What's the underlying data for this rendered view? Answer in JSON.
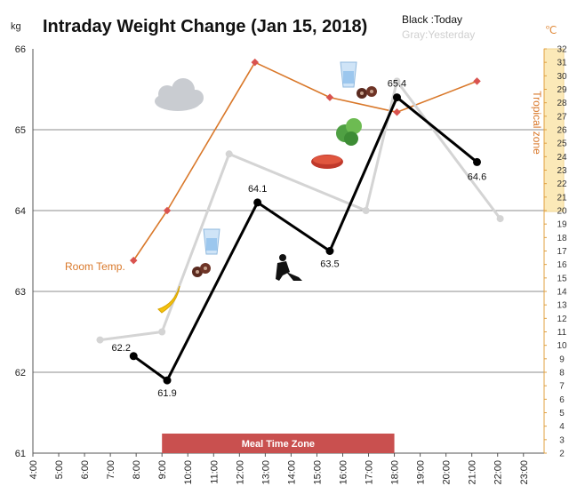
{
  "chart_data": {
    "type": "line",
    "title": "Intraday Weight Change (Jan 15, 2018)",
    "legend": {
      "today": "Black :Today",
      "yesterday": "Gray:Yesterday"
    },
    "y_unit": "kg",
    "y2_unit": "℃",
    "ylim": [
      61,
      66
    ],
    "y_ticks": [
      "61",
      "62",
      "63",
      "64",
      "65",
      "66"
    ],
    "y2lim": [
      2,
      32
    ],
    "y2_ticks": [
      "2",
      "3",
      "4",
      "5",
      "6",
      "7",
      "8",
      "9",
      "10",
      "11",
      "12",
      "13",
      "14",
      "15",
      "16",
      "17",
      "18",
      "19",
      "20",
      "21",
      "22",
      "23",
      "24",
      "25",
      "26",
      "27",
      "28",
      "29",
      "30",
      "31",
      "32"
    ],
    "x_ticks": [
      "4:00",
      "5:00",
      "6:00",
      "7:00",
      "8:00",
      "9:00",
      "10:00",
      "11:00",
      "12:00",
      "13:00",
      "14:00",
      "15:00",
      "16:00",
      "17:00",
      "18:00",
      "19:00",
      "20:00",
      "21:00",
      "22:00",
      "23:00"
    ],
    "x_range": [
      4,
      23.8
    ],
    "series": [
      {
        "name": "Today",
        "color": "#000000",
        "points": [
          [
            7.9,
            62.2
          ],
          [
            9.2,
            61.9
          ],
          [
            12.7,
            64.1
          ],
          [
            15.5,
            63.5
          ],
          [
            18.1,
            65.4
          ],
          [
            21.2,
            64.6
          ]
        ],
        "labels": [
          "62.2",
          "61.9",
          "64.1",
          "63.5",
          "65.4",
          "64.6"
        ]
      },
      {
        "name": "Yesterday",
        "color": "#d4d4d4",
        "points": [
          [
            6.6,
            62.4
          ],
          [
            9.0,
            62.5
          ],
          [
            11.6,
            64.7
          ],
          [
            16.9,
            64.0
          ],
          [
            18.1,
            65.6
          ],
          [
            22.1,
            63.9
          ]
        ]
      },
      {
        "name": "Room Temp.",
        "color": "#d9782a",
        "axis": "y2",
        "points": [
          [
            7.9,
            16.3
          ],
          [
            9.2,
            20.0
          ],
          [
            12.6,
            31.0
          ],
          [
            15.5,
            28.4
          ],
          [
            18.1,
            27.3
          ],
          [
            21.2,
            29.6
          ]
        ]
      }
    ],
    "annotations": {
      "room_temp": "Room Temp.",
      "tropical_zone": "Tropical zone",
      "meal_zone": "Meal Time Zone"
    },
    "meal_zone_x": [
      9.0,
      18.0
    ],
    "grid": true
  },
  "icons": [
    "cloud-icon",
    "water-glass-icon",
    "chocolate-icon",
    "banana-icon",
    "lettuce-icon",
    "steak-icon",
    "worker-icon",
    "nuts-icon"
  ]
}
